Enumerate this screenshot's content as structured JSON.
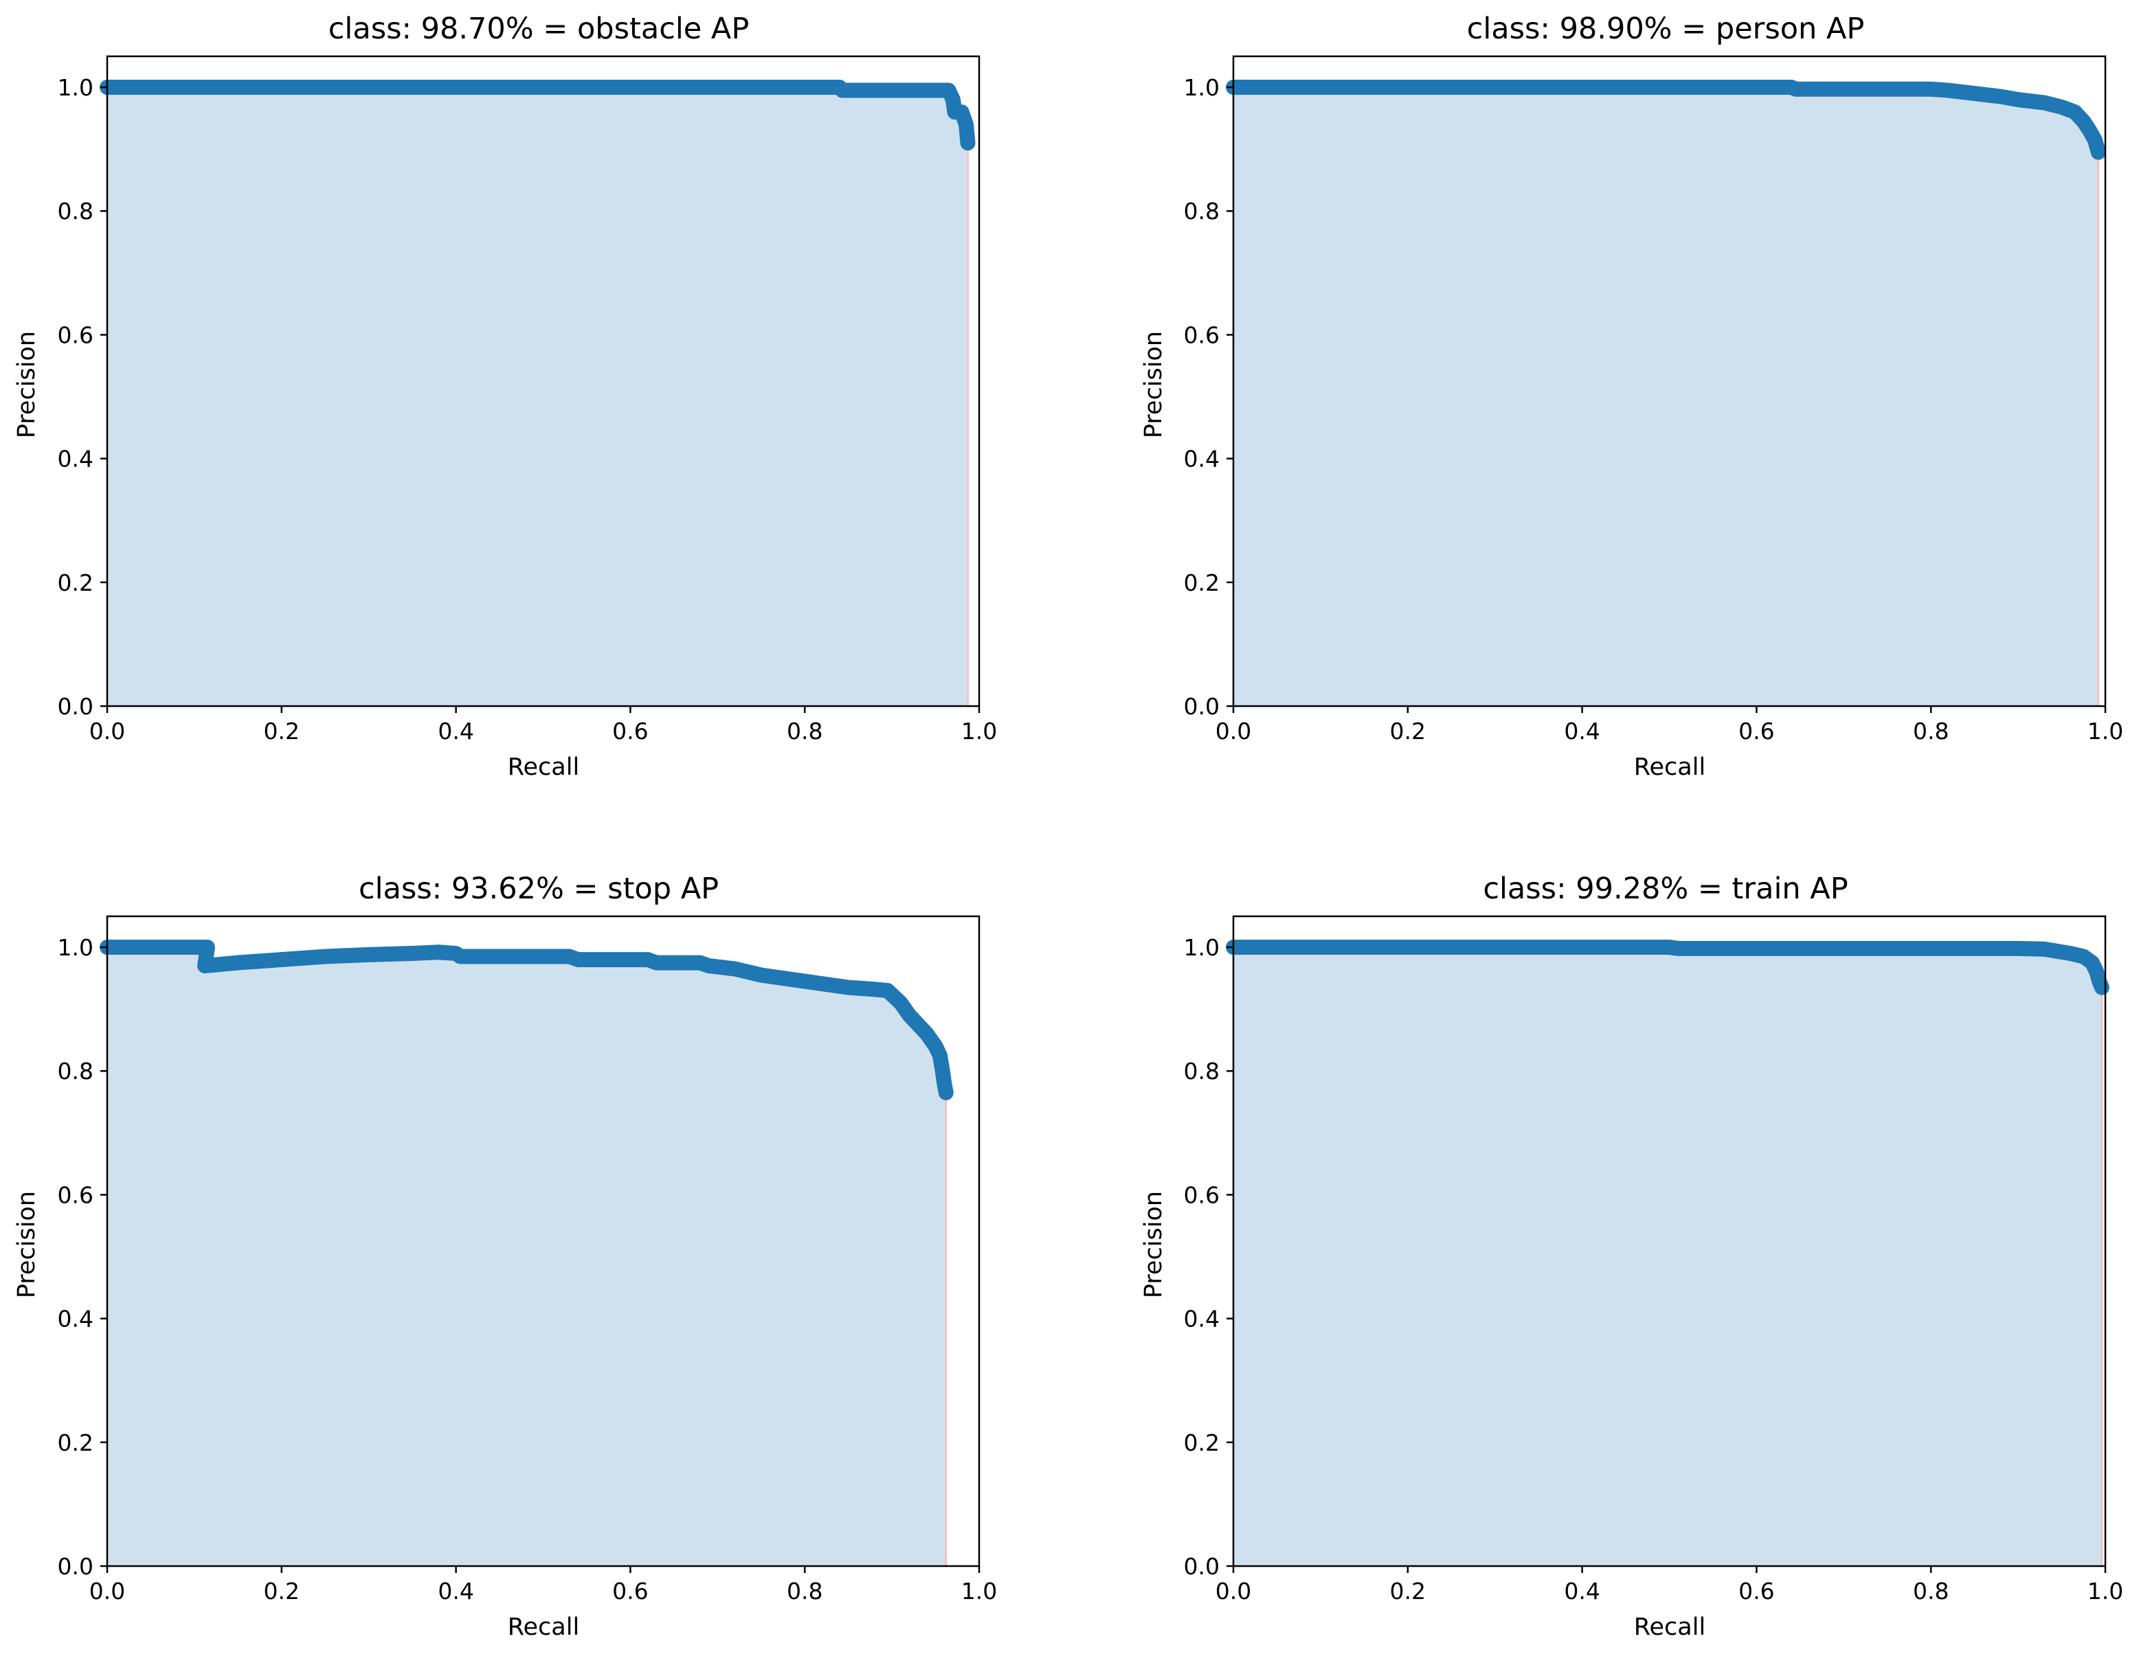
{
  "chart_data": [
    {
      "type": "line",
      "title": "class: 98.70% = obstacle AP",
      "xlabel": "Recall",
      "ylabel": "Precision",
      "xlim": [
        0.0,
        1.0
      ],
      "ylim": [
        0.0,
        1.05
      ],
      "xticks": [
        "0.0",
        "0.2",
        "0.4",
        "0.6",
        "0.8",
        "1.0"
      ],
      "yticks": [
        "0.0",
        "0.2",
        "0.4",
        "0.6",
        "0.8",
        "1.0"
      ],
      "grid": false,
      "series": [
        {
          "x": [
            0.0,
            0.2,
            0.4,
            0.6,
            0.8,
            0.84,
            0.843,
            0.9,
            0.95,
            0.965,
            0.97,
            0.972,
            0.98,
            0.985,
            0.987
          ],
          "y": [
            1.0,
            1.0,
            1.0,
            1.0,
            1.0,
            1.0,
            0.995,
            0.995,
            0.995,
            0.995,
            0.98,
            0.96,
            0.96,
            0.94,
            0.91
          ]
        }
      ],
      "fill_color": "#cfe1ef",
      "line_color": "#1f77b4",
      "edge_color": "#f4c2c9"
    },
    {
      "type": "line",
      "title": "class: 98.90% = person AP",
      "xlabel": "Recall",
      "ylabel": "Precision",
      "xlim": [
        0.0,
        1.0
      ],
      "ylim": [
        0.0,
        1.05
      ],
      "xticks": [
        "0.0",
        "0.2",
        "0.4",
        "0.6",
        "0.8",
        "1.0"
      ],
      "yticks": [
        "0.0",
        "0.2",
        "0.4",
        "0.6",
        "0.8",
        "1.0"
      ],
      "grid": false,
      "series": [
        {
          "x": [
            0.0,
            0.2,
            0.4,
            0.6,
            0.64,
            0.645,
            0.7,
            0.8,
            0.82,
            0.85,
            0.88,
            0.9,
            0.93,
            0.95,
            0.965,
            0.975,
            0.982,
            0.988,
            0.992
          ],
          "y": [
            1.0,
            1.0,
            1.0,
            1.0,
            1.0,
            0.997,
            0.997,
            0.997,
            0.995,
            0.99,
            0.985,
            0.98,
            0.975,
            0.968,
            0.96,
            0.945,
            0.93,
            0.915,
            0.895
          ]
        }
      ],
      "fill_color": "#cfe1ef",
      "line_color": "#1f77b4",
      "edge_color": "#f4c2c9"
    },
    {
      "type": "line",
      "title": "class: 93.62% = stop AP",
      "xlabel": "Recall",
      "ylabel": "Precision",
      "xlim": [
        0.0,
        1.0
      ],
      "ylim": [
        0.0,
        1.05
      ],
      "xticks": [
        "0.0",
        "0.2",
        "0.4",
        "0.6",
        "0.8",
        "1.0"
      ],
      "yticks": [
        "0.0",
        "0.2",
        "0.4",
        "0.6",
        "0.8",
        "1.0"
      ],
      "grid": false,
      "series": [
        {
          "x": [
            0.0,
            0.05,
            0.1,
            0.115,
            0.112,
            0.15,
            0.2,
            0.25,
            0.3,
            0.35,
            0.38,
            0.4,
            0.405,
            0.45,
            0.5,
            0.53,
            0.54,
            0.6,
            0.62,
            0.63,
            0.68,
            0.69,
            0.72,
            0.75,
            0.8,
            0.85,
            0.88,
            0.895,
            0.91,
            0.92,
            0.93,
            0.94,
            0.945,
            0.95,
            0.955,
            0.958,
            0.96,
            0.962
          ],
          "y": [
            1.0,
            1.0,
            1.0,
            1.0,
            0.97,
            0.975,
            0.98,
            0.985,
            0.988,
            0.99,
            0.992,
            0.99,
            0.985,
            0.985,
            0.985,
            0.985,
            0.98,
            0.98,
            0.98,
            0.975,
            0.975,
            0.97,
            0.965,
            0.955,
            0.945,
            0.935,
            0.932,
            0.93,
            0.91,
            0.89,
            0.875,
            0.86,
            0.85,
            0.84,
            0.825,
            0.8,
            0.78,
            0.765
          ]
        }
      ],
      "fill_color": "#cfe1ef",
      "line_color": "#1f77b4",
      "edge_color": "#f4c2c9"
    },
    {
      "type": "line",
      "title": "class: 99.28% = train AP",
      "xlabel": "Recall",
      "ylabel": "Precision",
      "xlim": [
        0.0,
        1.0
      ],
      "ylim": [
        0.0,
        1.05
      ],
      "xticks": [
        "0.0",
        "0.2",
        "0.4",
        "0.6",
        "0.8",
        "1.0"
      ],
      "yticks": [
        "0.0",
        "0.2",
        "0.4",
        "0.6",
        "0.8",
        "1.0"
      ],
      "grid": false,
      "series": [
        {
          "x": [
            0.0,
            0.2,
            0.4,
            0.5,
            0.51,
            0.6,
            0.7,
            0.8,
            0.9,
            0.93,
            0.96,
            0.975,
            0.985,
            0.99,
            0.993,
            0.996
          ],
          "y": [
            1.0,
            1.0,
            1.0,
            1.0,
            0.998,
            0.998,
            0.998,
            0.998,
            0.998,
            0.997,
            0.99,
            0.985,
            0.975,
            0.96,
            0.945,
            0.935
          ]
        }
      ],
      "fill_color": "#cfe1ef",
      "line_color": "#1f77b4",
      "edge_color": "#f4c2c9"
    }
  ]
}
